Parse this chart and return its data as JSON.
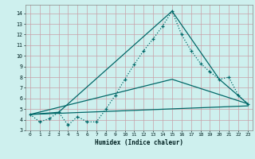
{
  "title": "",
  "xlabel": "Humidex (Indice chaleur)",
  "ylabel": "",
  "xlim": [
    -0.5,
    23.5
  ],
  "ylim": [
    3.0,
    14.8
  ],
  "yticks": [
    3,
    4,
    5,
    6,
    7,
    8,
    9,
    10,
    11,
    12,
    13,
    14
  ],
  "xticks": [
    0,
    1,
    2,
    3,
    4,
    5,
    6,
    7,
    8,
    9,
    10,
    11,
    12,
    13,
    14,
    15,
    16,
    17,
    18,
    19,
    20,
    21,
    22,
    23
  ],
  "bg_color": "#cef0ee",
  "grid_color": "#c8a0a8",
  "line_color": "#006868",
  "line1_x": [
    0,
    1,
    2,
    3,
    4,
    5,
    6,
    7,
    8,
    9,
    10,
    11,
    12,
    13,
    14,
    15,
    16,
    17,
    18,
    19,
    20,
    21,
    22,
    23
  ],
  "line1_y": [
    4.5,
    3.8,
    4.1,
    4.7,
    3.5,
    4.3,
    3.8,
    3.8,
    5.0,
    6.3,
    7.8,
    9.2,
    10.5,
    11.6,
    12.8,
    14.2,
    12.0,
    10.5,
    9.3,
    8.5,
    7.8,
    8.0,
    6.3,
    5.5
  ],
  "line2_x": [
    0,
    3,
    15,
    20,
    23
  ],
  "line2_y": [
    4.5,
    4.7,
    14.2,
    7.8,
    5.5
  ],
  "line3_x": [
    0,
    15,
    23
  ],
  "line3_y": [
    4.5,
    7.8,
    5.5
  ],
  "line4_x": [
    0,
    23
  ],
  "line4_y": [
    4.5,
    5.3
  ]
}
